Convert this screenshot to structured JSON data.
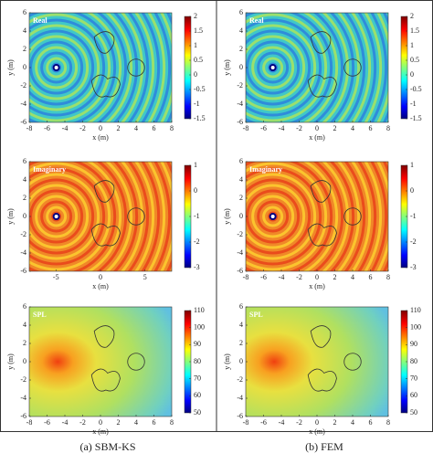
{
  "panels": [
    {
      "caption": "(a) SBM-KS",
      "plots": [
        {
          "label": "Real",
          "xlabel": "x (m)",
          "ylabel": "y (m)",
          "xlim": [
            -8,
            8
          ],
          "xticks": [
            -8,
            -6,
            -4,
            -2,
            0,
            2,
            4,
            6,
            8
          ],
          "ylim": [
            -6,
            6
          ],
          "yticks": [
            -6,
            -4,
            -2,
            0,
            2,
            4,
            6
          ],
          "clim": [
            -1.5,
            2
          ],
          "cticks": [
            -1.5,
            -1,
            -0.5,
            0,
            0.5,
            1,
            1.5,
            2
          ]
        },
        {
          "label": "Imaginary",
          "xlabel": "x (m)",
          "ylabel": "y (m)",
          "xlim": [
            -8,
            8
          ],
          "xticks": [
            -5,
            0,
            5
          ],
          "ylim": [
            -6,
            6
          ],
          "yticks": [
            -6,
            -4,
            -2,
            0,
            2,
            4,
            6
          ],
          "clim": [
            -3,
            1
          ],
          "cticks": [
            -3,
            -2,
            -1,
            0,
            1
          ]
        },
        {
          "label": "SPL",
          "xlabel": "x (m)",
          "ylabel": "y (m)",
          "xlim": [
            -8,
            8
          ],
          "xticks": [
            -8,
            -6,
            -4,
            -2,
            0,
            2,
            4,
            6,
            8
          ],
          "ylim": [
            -6,
            6
          ],
          "yticks": [
            -6,
            -4,
            -2,
            0,
            2,
            4,
            6
          ],
          "clim": [
            50,
            110
          ],
          "cticks": [
            50,
            60,
            70,
            80,
            90,
            100,
            110
          ]
        }
      ]
    },
    {
      "caption": "(b) FEM",
      "plots": [
        {
          "label": "Real",
          "xlabel": "x (m)",
          "ylabel": "y (m)",
          "xlim": [
            -8,
            8
          ],
          "xticks": [
            -8,
            -6,
            -4,
            -2,
            0,
            2,
            4,
            6,
            8
          ],
          "ylim": [
            -6,
            6
          ],
          "yticks": [
            -6,
            -4,
            -2,
            0,
            2,
            4,
            6
          ],
          "clim": [
            -1.5,
            2
          ],
          "cticks": [
            -1.5,
            -1,
            -0.5,
            0,
            0.5,
            1,
            1.5,
            2
          ]
        },
        {
          "label": "Imaginary",
          "xlabel": "x (m)",
          "ylabel": "y (m)",
          "xlim": [
            -8,
            8
          ],
          "xticks": [
            -8,
            -6,
            -4,
            -2,
            0,
            2,
            4,
            6,
            8
          ],
          "ylim": [
            -6,
            6
          ],
          "yticks": [
            -6,
            -4,
            -2,
            0,
            2,
            4,
            6
          ],
          "clim": [
            -3,
            1
          ],
          "cticks": [
            -3,
            -2,
            -1,
            0,
            1
          ]
        },
        {
          "label": "SPL",
          "xlabel": "x (m)",
          "ylabel": "y (m)",
          "xlim": [
            -8,
            8
          ],
          "xticks": [
            -8,
            -6,
            -4,
            -2,
            0,
            2,
            4,
            6,
            8
          ],
          "ylim": [
            -6,
            6
          ],
          "yticks": [
            -6,
            -4,
            -2,
            0,
            2,
            4,
            6
          ],
          "clim": [
            50,
            110
          ],
          "cticks": [
            50,
            60,
            70,
            80,
            90,
            100,
            110
          ]
        }
      ]
    }
  ]
}
